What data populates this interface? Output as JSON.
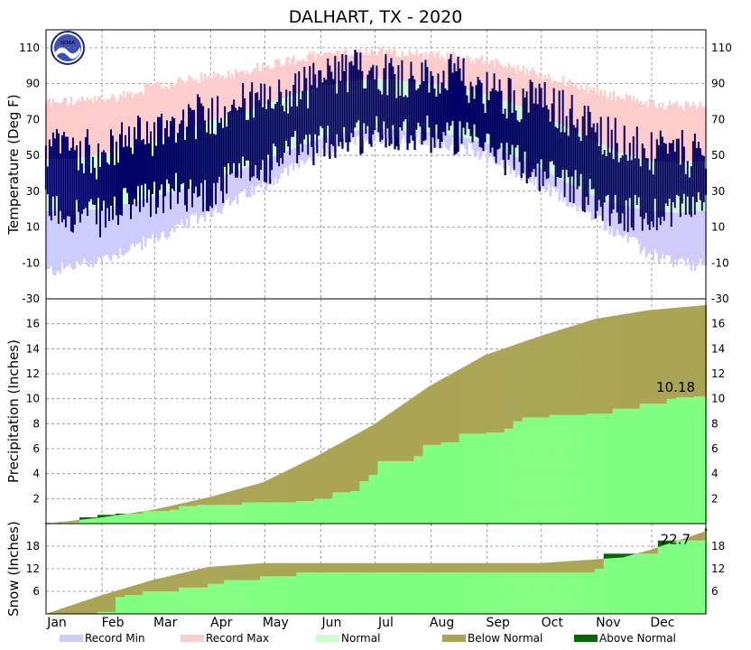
{
  "title": "DALHART, TX - 2020",
  "colors": {
    "record_min": "#ccccff",
    "record_max": "#ffcccc",
    "normal": "#ccffcc",
    "observed": "#000066",
    "below_normal": "#aaa555",
    "above_normal": "#006a00",
    "observed_precip": "#80ff80",
    "grid": "#888888"
  },
  "chart_data": [
    {
      "type": "area",
      "name": "temperature",
      "ylabel": "Temperature (Deg F)",
      "ylim": [
        -30,
        120
      ],
      "yticks": [
        -30,
        -10,
        10,
        30,
        50,
        70,
        90,
        110
      ],
      "x_unit": "day of year",
      "x_range": [
        1,
        366
      ],
      "series": [
        {
          "name": "Record Min",
          "x": [
            1,
            15,
            32,
            46,
            60,
            75,
            91,
            106,
            121,
            136,
            152,
            167,
            182,
            197,
            213,
            228,
            244,
            259,
            274,
            289,
            305,
            320,
            335,
            350,
            366
          ],
          "values": [
            -15,
            -12,
            -8,
            -2,
            3,
            10,
            18,
            25,
            33,
            42,
            52,
            57,
            60,
            60,
            58,
            56,
            50,
            42,
            33,
            25,
            15,
            5,
            -5,
            -10,
            -12
          ]
        },
        {
          "name": "Record Max",
          "x": [
            1,
            15,
            32,
            46,
            60,
            75,
            91,
            106,
            121,
            136,
            152,
            167,
            182,
            197,
            213,
            228,
            244,
            259,
            274,
            289,
            305,
            320,
            335,
            350,
            366
          ],
          "values": [
            80,
            80,
            81,
            84,
            88,
            91,
            94,
            96,
            100,
            103,
            106,
            107,
            108,
            107,
            106,
            105,
            103,
            99,
            95,
            91,
            86,
            82,
            79,
            78,
            78
          ]
        },
        {
          "name": "Normal High",
          "x": [
            1,
            15,
            32,
            46,
            60,
            75,
            91,
            106,
            121,
            136,
            152,
            167,
            182,
            197,
            213,
            228,
            244,
            259,
            274,
            289,
            305,
            320,
            335,
            350,
            366
          ],
          "values": [
            48,
            48,
            51,
            54,
            58,
            63,
            69,
            73,
            78,
            83,
            88,
            91,
            93,
            92,
            90,
            88,
            84,
            79,
            73,
            66,
            58,
            51,
            47,
            46,
            47
          ]
        },
        {
          "name": "Normal Low",
          "x": [
            1,
            15,
            32,
            46,
            60,
            75,
            91,
            106,
            121,
            136,
            152,
            167,
            182,
            197,
            213,
            228,
            244,
            259,
            274,
            289,
            305,
            320,
            335,
            350,
            366
          ],
          "values": [
            19,
            19,
            20,
            23,
            27,
            31,
            36,
            41,
            47,
            53,
            59,
            63,
            65,
            64,
            63,
            61,
            57,
            50,
            43,
            35,
            27,
            22,
            19,
            18,
            19
          ]
        },
        {
          "name": "Observed High",
          "x": [
            1,
            15,
            32,
            46,
            60,
            75,
            91,
            106,
            121,
            136,
            152,
            167,
            182,
            197,
            213,
            228,
            244,
            259,
            274,
            289,
            305,
            320,
            335,
            350,
            366
          ],
          "values": [
            52,
            56,
            48,
            60,
            62,
            70,
            72,
            80,
            78,
            84,
            92,
            96,
            98,
            94,
            92,
            94,
            86,
            82,
            80,
            74,
            64,
            58,
            50,
            52,
            48
          ]
        },
        {
          "name": "Observed Low",
          "x": [
            1,
            15,
            32,
            46,
            60,
            75,
            91,
            106,
            121,
            136,
            152,
            167,
            182,
            197,
            213,
            228,
            244,
            259,
            274,
            289,
            305,
            320,
            335,
            350,
            366
          ],
          "values": [
            20,
            18,
            15,
            22,
            25,
            30,
            28,
            38,
            42,
            52,
            56,
            60,
            62,
            64,
            62,
            60,
            55,
            48,
            40,
            36,
            25,
            18,
            16,
            22,
            20
          ]
        }
      ]
    },
    {
      "type": "area",
      "name": "precipitation",
      "ylabel": "Precipitation (Inches)",
      "ylim": [
        0,
        18
      ],
      "yticks": [
        2,
        4,
        6,
        8,
        10,
        12,
        14,
        16
      ],
      "x_unit": "day of year",
      "x_range": [
        1,
        366
      ],
      "annotation": "10.18",
      "series": [
        {
          "name": "Normal",
          "x": [
            1,
            32,
            60,
            91,
            121,
            152,
            182,
            213,
            244,
            274,
            305,
            335,
            366
          ],
          "values": [
            0,
            0.5,
            1.1,
            2.1,
            3.3,
            5.5,
            7.9,
            11.0,
            13.5,
            15.0,
            16.4,
            17.1,
            17.5
          ]
        },
        {
          "name": "Observed",
          "x": [
            1,
            10,
            20,
            30,
            40,
            55,
            70,
            75,
            85,
            100,
            110,
            140,
            150,
            160,
            170,
            175,
            180,
            185,
            200,
            205,
            210,
            220,
            230,
            245,
            255,
            260,
            265,
            275,
            280,
            290,
            300,
            315,
            320,
            330,
            345,
            350,
            360,
            366
          ],
          "values": [
            0.05,
            0.1,
            0.5,
            0.7,
            0.8,
            1.0,
            1.1,
            1.4,
            1.5,
            1.5,
            1.7,
            1.8,
            2.0,
            2.5,
            2.6,
            3.4,
            3.9,
            5.0,
            5.0,
            5.4,
            6.3,
            6.5,
            7.2,
            7.3,
            7.6,
            8.2,
            8.5,
            8.5,
            8.7,
            8.7,
            8.8,
            9.2,
            9.2,
            9.6,
            10.0,
            10.1,
            10.18,
            10.18
          ]
        }
      ]
    },
    {
      "type": "area",
      "name": "snow",
      "ylabel": "Snow (Inches)",
      "ylim": [
        0,
        24
      ],
      "yticks": [
        6,
        12,
        18
      ],
      "x_unit": "day of year",
      "x_range": [
        1,
        366
      ],
      "annotation": "22.7",
      "series": [
        {
          "name": "Normal",
          "x": [
            1,
            32,
            60,
            91,
            121,
            152,
            182,
            213,
            244,
            274,
            305,
            320,
            335,
            366
          ],
          "values": [
            0,
            5,
            9,
            12.5,
            13.5,
            13.5,
            13.5,
            13.5,
            13.5,
            13.5,
            14.5,
            15,
            17,
            22
          ]
        },
        {
          "name": "Observed",
          "x": [
            1,
            30,
            40,
            45,
            55,
            60,
            75,
            91,
            100,
            120,
            140,
            180,
            210,
            300,
            305,
            310,
            325,
            340,
            350,
            366
          ],
          "values": [
            0,
            0.5,
            4.5,
            5,
            6,
            6,
            7,
            8,
            9,
            10,
            11,
            11,
            11,
            11,
            12,
            16,
            16,
            19.5,
            19.5,
            22.7
          ]
        }
      ]
    }
  ],
  "months": [
    "Jan",
    "Feb",
    "Mar",
    "Apr",
    "May",
    "Jun",
    "Jul",
    "Aug",
    "Sep",
    "Oct",
    "Nov",
    "Dec"
  ],
  "legend": [
    "Record Min",
    "Record Max",
    "Normal",
    "Below Normal",
    "Above Normal"
  ]
}
